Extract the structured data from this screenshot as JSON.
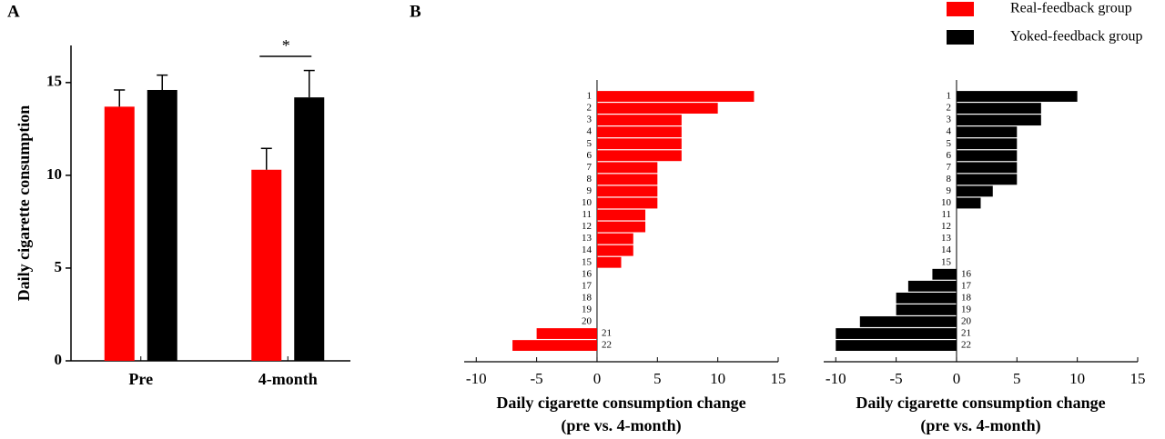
{
  "chart_data": [
    {
      "type": "bar",
      "panel_label": "A",
      "ylabel": "Daily cigarette consumption",
      "categories": [
        "Pre",
        "4-month"
      ],
      "series": [
        {
          "name": "Real-feedback group",
          "color": "#ff0000",
          "values": [
            13.7,
            10.3
          ],
          "errors": [
            0.9,
            1.15
          ]
        },
        {
          "name": "Yoked-feedback group",
          "color": "#000000",
          "values": [
            14.6,
            14.2
          ],
          "errors": [
            0.8,
            1.45
          ]
        }
      ],
      "ylim": [
        0,
        17
      ],
      "yticks": [
        0,
        5,
        10,
        15
      ],
      "significance": "*"
    },
    {
      "type": "hbar",
      "panel_label": "B",
      "xlabel": [
        "Daily cigarette consumption change",
        "(pre vs. 4-month)"
      ],
      "categories": [
        "1",
        "2",
        "3",
        "4",
        "5",
        "6",
        "7",
        "8",
        "9",
        "10",
        "11",
        "12",
        "13",
        "14",
        "15",
        "16",
        "17",
        "18",
        "19",
        "20",
        "21",
        "22"
      ],
      "series": [
        {
          "name": "Real-feedback group",
          "color": "#ff0000",
          "values": [
            13,
            10,
            7,
            7,
            7,
            7,
            5,
            5,
            5,
            5,
            4,
            4,
            3,
            3,
            2,
            0,
            0,
            0,
            0,
            0,
            -5,
            -7
          ]
        }
      ],
      "xlim": [
        -11,
        15
      ],
      "xticks": [
        -10,
        -5,
        0,
        5,
        10,
        15
      ]
    },
    {
      "type": "hbar",
      "xlabel": [
        "Daily cigarette consumption change",
        "(pre vs. 4-month)"
      ],
      "categories": [
        "1",
        "2",
        "3",
        "4",
        "5",
        "6",
        "7",
        "8",
        "9",
        "10",
        "11",
        "12",
        "13",
        "14",
        "15",
        "16",
        "17",
        "18",
        "19",
        "20",
        "21",
        "22"
      ],
      "series": [
        {
          "name": "Yoked-feedback group",
          "color": "#000000",
          "values": [
            10,
            7,
            7,
            5,
            5,
            5,
            5,
            5,
            3,
            2,
            0,
            0,
            0,
            0,
            0,
            -2,
            -4,
            -5,
            -5,
            -8,
            -10,
            -10
          ]
        }
      ],
      "xlim": [
        -11,
        15
      ],
      "xticks": [
        -10,
        -5,
        0,
        5,
        10,
        15
      ]
    }
  ]
}
